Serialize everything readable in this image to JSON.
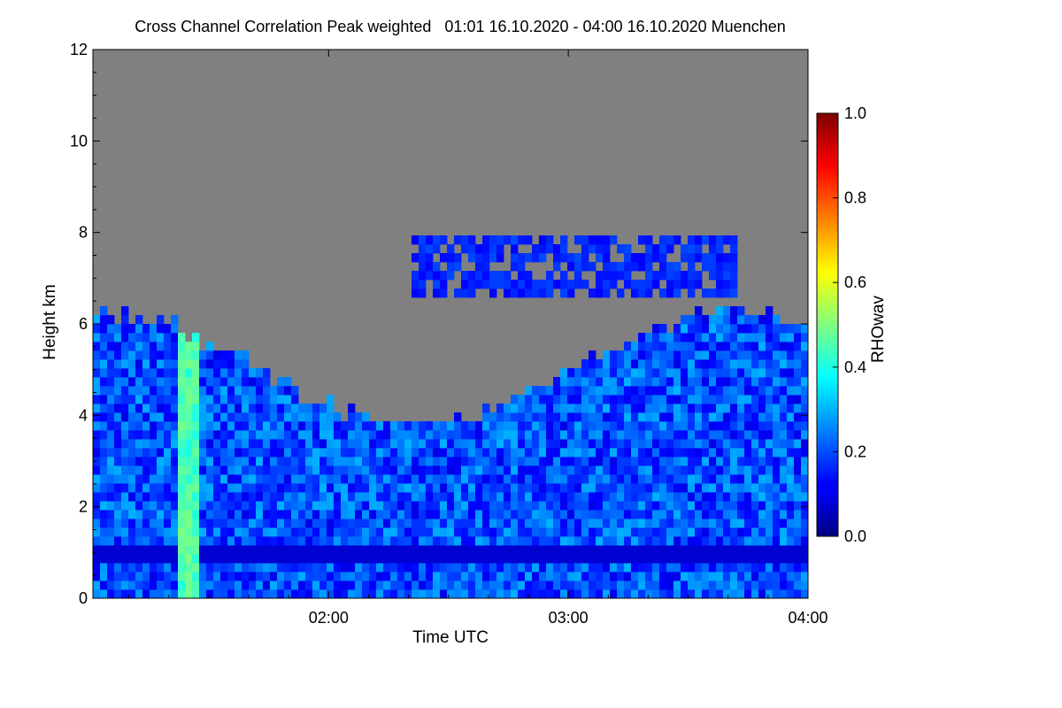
{
  "chart_data": {
    "type": "heatmap",
    "title": "Cross Channel Correlation Peak weighted   01:01 16.10.2020 - 04:00 16.10.2020 Muenchen",
    "xlabel": "Time UTC",
    "ylabel": "Height km",
    "xlim": [
      "01:01",
      "04:00"
    ],
    "ylim": [
      0,
      12
    ],
    "x_ticks": [
      "02:00",
      "03:00",
      "04:00"
    ],
    "y_ticks": [
      "0",
      "2",
      "4",
      "6",
      "8",
      "10",
      "12"
    ],
    "colorbar": {
      "label": "RHOwav",
      "range": [
        0.0,
        1.0
      ],
      "ticks": [
        "0.0",
        "0.2",
        "0.4",
        "0.6",
        "0.8",
        "1.0"
      ],
      "colormap": "jet"
    },
    "no_data_color": "#808080",
    "description_layers": {
      "background_value_range": [
        0.1,
        0.3
      ],
      "low_boundary_layer_top_km": 1.0,
      "main_cloud_top_km_range": [
        3.8,
        6.3
      ],
      "upper_layer_km_range": [
        6.5,
        8.0
      ],
      "high_value_streak_time": "01:25",
      "high_value_streak_value": 0.5
    }
  }
}
